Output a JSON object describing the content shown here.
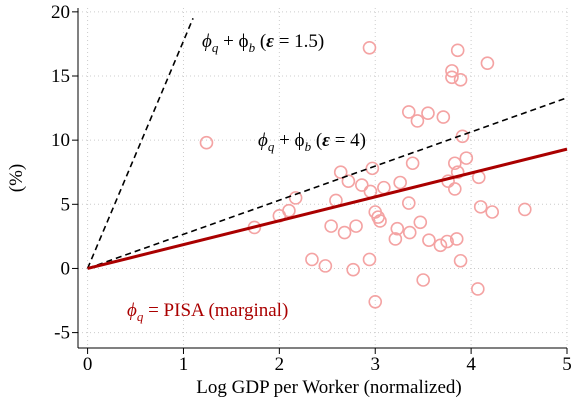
{
  "chart_data": {
    "type": "scatter",
    "xlabel": "Log GDP per Worker (normalized)",
    "ylabel": "(%)",
    "xlim": [
      -0.1,
      5
    ],
    "ylim": [
      -6.2,
      20.3
    ],
    "xticks": [
      0,
      1,
      2,
      3,
      4,
      5
    ],
    "yticks": [
      -5,
      0,
      5,
      10,
      15,
      20
    ],
    "grid": true,
    "series": [
      {
        "color": "#f4a3a3",
        "x": [
          1.24,
          2.94,
          3.86,
          3.8,
          3.8,
          3.89,
          4.17,
          3.35,
          3.55,
          3.44,
          3.71,
          3.91,
          3.39,
          3.83,
          3.95,
          2.64,
          2.97,
          3.26,
          3.09,
          2.86,
          2.72,
          2.95,
          3.86,
          3.76,
          3.83,
          4.08,
          2.17,
          2.1,
          2.0,
          1.74,
          2.59,
          2.54,
          2.68,
          2.8,
          3.0,
          3.03,
          3.05,
          3.35,
          3.36,
          3.47,
          3.21,
          3.23,
          3.56,
          3.68,
          3.75,
          3.85,
          4.1,
          4.22,
          4.56,
          3.89,
          2.34,
          2.48,
          2.77,
          2.94,
          3.5,
          4.07,
          3.0
        ],
        "y": [
          9.8,
          17.2,
          17.0,
          15.4,
          14.9,
          14.7,
          16.0,
          12.2,
          12.1,
          11.5,
          11.8,
          10.3,
          8.2,
          8.2,
          8.6,
          7.5,
          7.8,
          6.7,
          6.3,
          6.5,
          6.8,
          6.0,
          7.5,
          6.8,
          6.2,
          7.1,
          5.5,
          4.5,
          4.1,
          3.2,
          5.3,
          3.3,
          2.8,
          3.3,
          4.4,
          4.0,
          3.7,
          5.1,
          2.8,
          3.6,
          2.3,
          3.1,
          2.2,
          1.8,
          2.1,
          2.3,
          4.8,
          4.4,
          4.6,
          0.6,
          0.7,
          0.2,
          -0.1,
          0.7,
          -0.9,
          -1.6,
          -2.6
        ]
      }
    ],
    "lines": [
      {
        "color": "#000000",
        "dashed": true,
        "x": [
          0,
          1.1
        ],
        "y": [
          0,
          19.5
        ]
      },
      {
        "color": "#000000",
        "dashed": true,
        "x": [
          0,
          5
        ],
        "y": [
          0,
          13.3
        ]
      },
      {
        "color": "#aa0000",
        "dashed": false,
        "x": [
          0,
          5
        ],
        "y": [
          0,
          9.3
        ]
      }
    ],
    "annotations": [
      {
        "color": "#000000",
        "parts": [
          {
            "text": "ϕ"
          },
          {
            "text": "q",
            "sub": true
          },
          {
            "text": " + ϕ"
          },
          {
            "text": "b",
            "sub": true
          },
          {
            "text": " ("
          },
          {
            "text": "ε",
            "bold": true
          },
          {
            "text": " = 1.5)"
          }
        ]
      },
      {
        "color": "#000000",
        "parts": [
          {
            "text": "ϕ"
          },
          {
            "text": "q",
            "sub": true
          },
          {
            "text": " + ϕ"
          },
          {
            "text": "b",
            "sub": true
          },
          {
            "text": " ("
          },
          {
            "text": "ε",
            "bold": true
          },
          {
            "text": " = 4)"
          }
        ]
      },
      {
        "color": "#aa0000",
        "parts": [
          {
            "text": "ϕ"
          },
          {
            "text": "q",
            "sub": true
          },
          {
            "text": " = PISA (marginal)"
          }
        ]
      }
    ]
  }
}
